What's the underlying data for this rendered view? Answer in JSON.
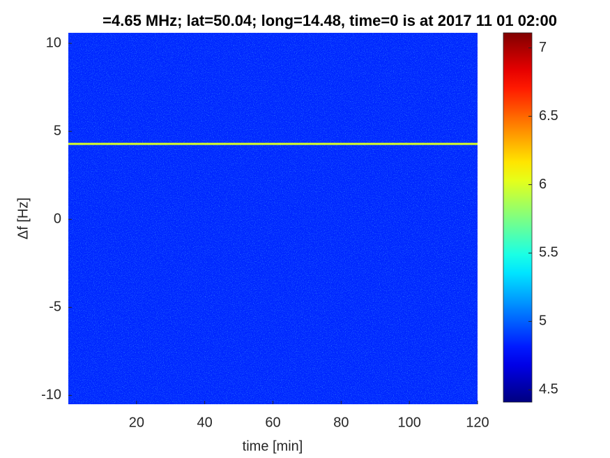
{
  "chart_data": {
    "type": "heatmap",
    "title": "=4.65 MHz;  lat=50.04; long=14.48, time=0 is at 2017 11 01 02:00",
    "x_label": "time [min]",
    "y_label": "Δf [Hz]",
    "xlim": [
      0,
      120
    ],
    "xticks": [
      20,
      40,
      60,
      80,
      100,
      120
    ],
    "ylim": [
      -10.5,
      10.6
    ],
    "yticks": [
      10,
      5,
      0,
      -5,
      -10
    ],
    "background_level": 4.85,
    "signal_df": 4.29,
    "signal_level": 6.0,
    "colormap": "jet",
    "clim": [
      4.41,
      7.11
    ],
    "cticks": [
      4.5,
      5,
      5.5,
      6,
      6.5,
      7
    ]
  }
}
